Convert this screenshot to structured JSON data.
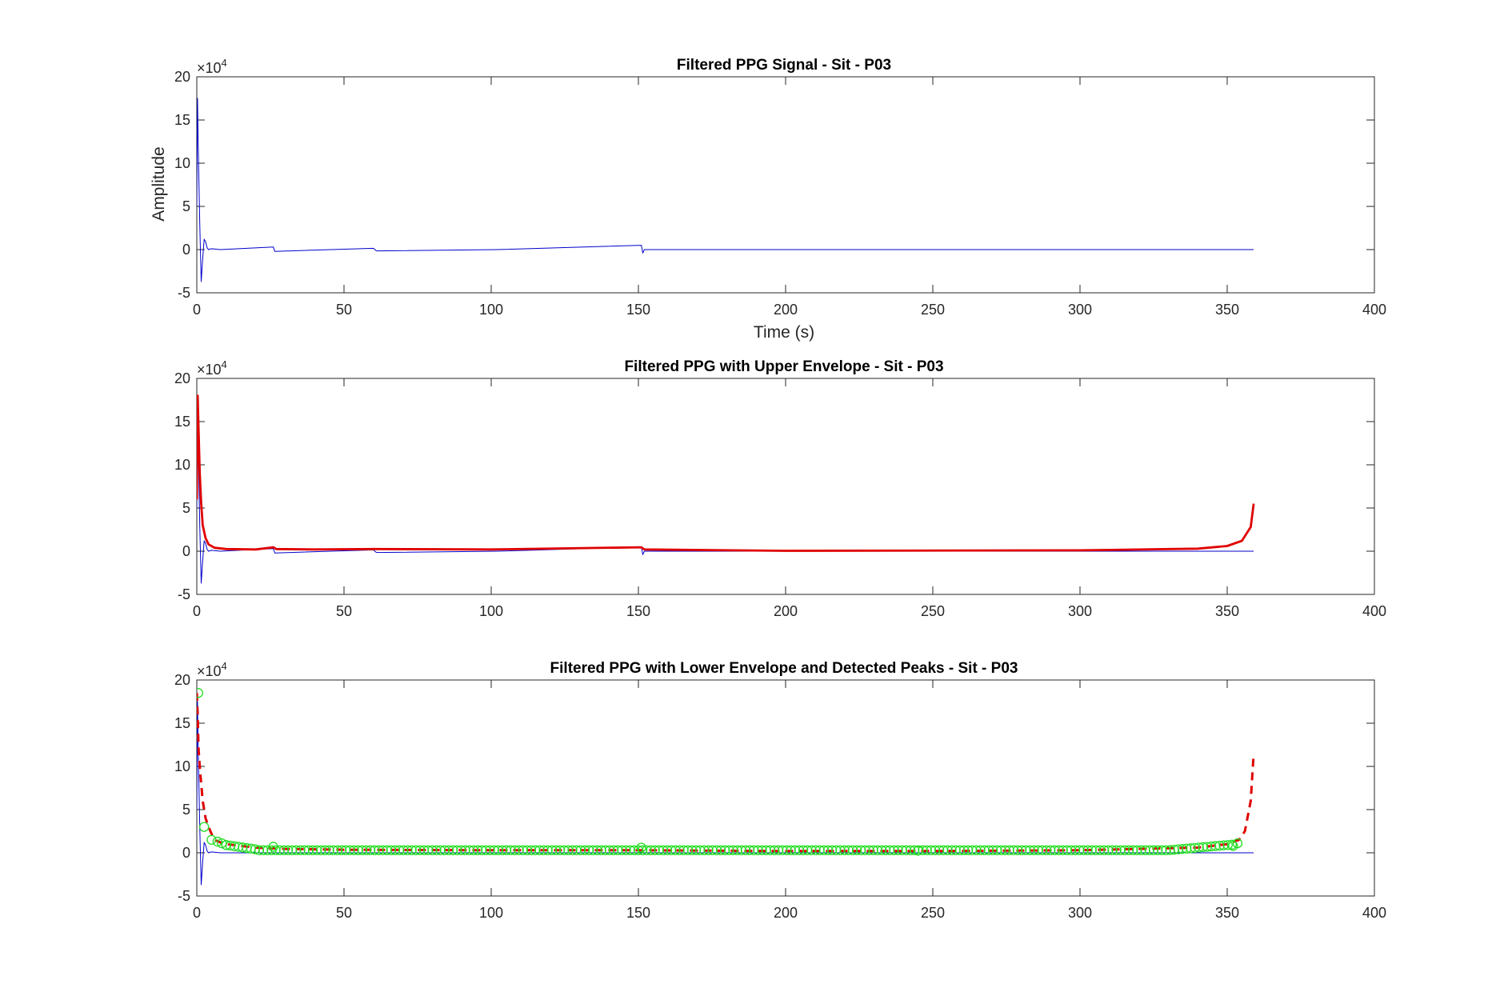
{
  "figure": {
    "background": "#ffffff"
  },
  "colors": {
    "signal": "#0000cc",
    "envelope": "#e00000",
    "peaks": "#22dd22",
    "axes": "#262626"
  },
  "chart_data": [
    {
      "type": "line",
      "title": "Filtered PPG Signal - Sit - P03",
      "xlabel": "Time (s)",
      "ylabel": "Amplitude",
      "y_exponent_label": "×10",
      "y_exponent": "4",
      "xlim": [
        0,
        400
      ],
      "ylim": [
        -5,
        20
      ],
      "xticks": [
        "0",
        "50",
        "100",
        "150",
        "200",
        "250",
        "300",
        "350",
        "400"
      ],
      "yticks": [
        "-5",
        "0",
        "5",
        "10",
        "15",
        "20"
      ],
      "grid": false,
      "series": [
        {
          "style": "thin-line",
          "color": "signal",
          "x": [
            0,
            0.25,
            0.5,
            1,
            1.5,
            2,
            2.5,
            3,
            3.5,
            4,
            5,
            8,
            26,
            26.5,
            60,
            61,
            102,
            151,
            151.5,
            152,
            200,
            300,
            359
          ],
          "y": [
            5,
            17.5,
            12,
            3,
            -3.7,
            -1,
            1.2,
            0.9,
            0.2,
            0,
            0.1,
            0,
            0.3,
            -0.2,
            0.15,
            -0.15,
            0,
            0.5,
            -0.4,
            0,
            0,
            0,
            0
          ]
        }
      ]
    },
    {
      "type": "line",
      "title": "Filtered PPG with Upper Envelope - Sit - P03",
      "y_exponent_label": "×10",
      "y_exponent": "4",
      "xlim": [
        0,
        400
      ],
      "ylim": [
        -5,
        20
      ],
      "xticks": [
        "0",
        "50",
        "100",
        "150",
        "200",
        "250",
        "300",
        "350",
        "400"
      ],
      "yticks": [
        "-5",
        "0",
        "5",
        "10",
        "15",
        "20"
      ],
      "grid": false,
      "series": [
        {
          "style": "thin-line",
          "color": "signal",
          "x": [
            0,
            0.25,
            0.5,
            1,
            1.5,
            2,
            2.5,
            3,
            3.5,
            4,
            5,
            8,
            26,
            26.5,
            60,
            61,
            102,
            151,
            151.5,
            152,
            200,
            300,
            359
          ],
          "y": [
            5,
            17.5,
            12,
            3,
            -3.7,
            -1,
            1.2,
            0.9,
            0.2,
            0,
            0.1,
            0,
            0.3,
            -0.2,
            0.15,
            -0.15,
            0,
            0.5,
            -0.4,
            0,
            0,
            0,
            0
          ]
        },
        {
          "style": "thick-line",
          "color": "envelope",
          "x": [
            0,
            0.3,
            0.6,
            1,
            1.5,
            2,
            3,
            4,
            6,
            10,
            20,
            26,
            27,
            40,
            60,
            100,
            151,
            152,
            200,
            300,
            340,
            350,
            355,
            358,
            359
          ],
          "y": [
            6,
            18,
            14,
            9,
            5.5,
            3,
            1.5,
            0.8,
            0.4,
            0.25,
            0.2,
            0.45,
            0.25,
            0.2,
            0.25,
            0.2,
            0.45,
            0.2,
            0.05,
            0.1,
            0.3,
            0.6,
            1.2,
            2.8,
            5.5
          ]
        }
      ]
    },
    {
      "type": "line",
      "title": "Filtered PPG with Lower Envelope and Detected Peaks - Sit - P03",
      "y_exponent_label": "×10",
      "y_exponent": "4",
      "xlim": [
        0,
        400
      ],
      "ylim": [
        -5,
        20
      ],
      "xticks": [
        "0",
        "50",
        "100",
        "150",
        "200",
        "250",
        "300",
        "350",
        "400"
      ],
      "yticks": [
        "-5",
        "0",
        "5",
        "10",
        "15",
        "20"
      ],
      "grid": false,
      "series": [
        {
          "style": "thin-line",
          "color": "signal",
          "x": [
            0,
            0.25,
            0.5,
            1,
            1.5,
            2,
            2.5,
            3,
            3.5,
            4,
            5,
            8,
            200,
            359
          ],
          "y": [
            5,
            17.5,
            12,
            3,
            -3.7,
            -1,
            1.2,
            0.9,
            0.2,
            0,
            0.1,
            0,
            0,
            0
          ]
        },
        {
          "style": "dashed-line",
          "color": "envelope",
          "x": [
            0,
            0.3,
            0.6,
            1,
            1.5,
            2,
            3,
            4,
            5,
            6,
            8,
            10,
            15,
            20,
            30,
            50,
            100,
            150,
            200,
            250,
            300,
            340,
            350,
            354,
            356,
            358,
            359
          ],
          "y": [
            18.5,
            16,
            12,
            10,
            8,
            6,
            4,
            3,
            2.2,
            1.5,
            1.2,
            1,
            0.8,
            0.6,
            0.45,
            0.35,
            0.3,
            0.3,
            0.2,
            0.2,
            0.3,
            0.6,
            1,
            1.5,
            2.5,
            6,
            11.5
          ]
        },
        {
          "style": "markers",
          "color": "peaks",
          "x": [
            0.5,
            2.5,
            5,
            7,
            8.5,
            10,
            26,
            151,
            245,
            352,
            353.5
          ],
          "y": [
            18.5,
            3,
            1.5,
            1.3,
            1.1,
            0.9,
            0.7,
            0.6,
            0.25,
            0.8,
            1.1
          ],
          "band_x": [
            10,
            352
          ],
          "band_step": 1.4
        }
      ]
    }
  ]
}
